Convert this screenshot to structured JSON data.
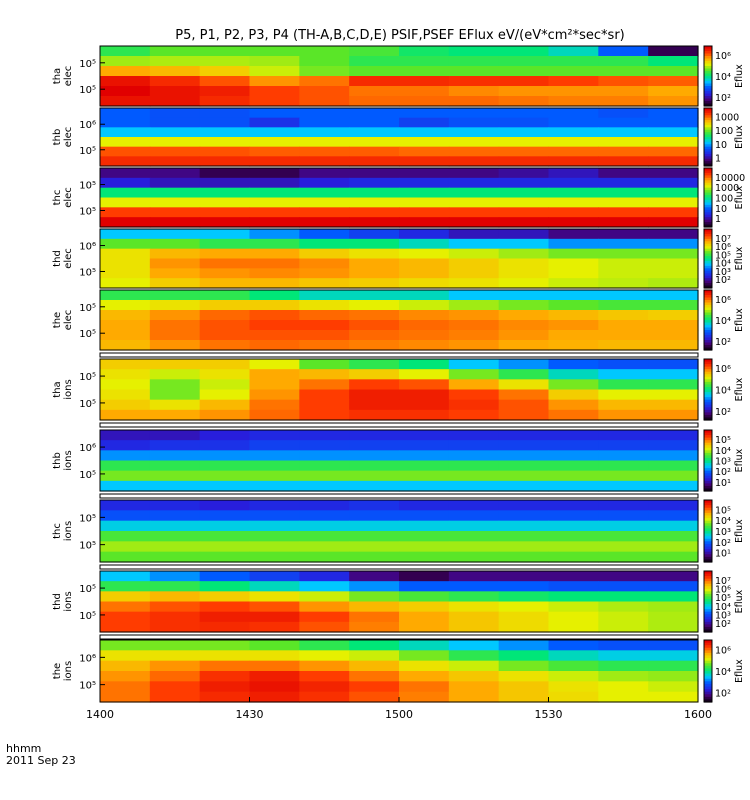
{
  "chart_data": {
    "type": "heatmap",
    "title": "P5, P1, P2, P3, P4 (TH-A,B,C,D,E) PSIF,PSEF EFlux eV/(eV*cm²*sec*sr)",
    "x_ticks": [
      "1400",
      "1430",
      "1500",
      "1530",
      "1600"
    ],
    "x_start_label": "hhmm",
    "date_label": "2011 Sep 23",
    "colorbar_label": "Eflux",
    "panels": [
      {
        "name": "tha",
        "species": "elec",
        "y_ticks": [
          "10⁵",
          "10⁵"
        ],
        "cbar_ticks": [
          "10⁶",
          "10⁴",
          "10²"
        ],
        "cbar_label": "Eflux",
        "rows": [
          [
            0.55,
            0.6,
            0.6,
            0.6,
            0.6,
            0.58,
            0.52,
            0.5,
            0.5,
            0.45,
            0.3,
            0.05
          ],
          [
            0.65,
            0.66,
            0.66,
            0.65,
            0.6,
            0.55,
            0.55,
            0.55,
            0.55,
            0.55,
            0.55,
            0.5
          ],
          [
            0.8,
            0.78,
            0.75,
            0.68,
            0.62,
            0.6,
            0.6,
            0.6,
            0.6,
            0.6,
            0.6,
            0.6
          ],
          [
            0.97,
            0.93,
            0.88,
            0.82,
            0.85,
            0.93,
            0.93,
            0.92,
            0.92,
            0.9,
            0.88,
            0.87
          ],
          [
            1.0,
            0.97,
            0.95,
            0.9,
            0.88,
            0.85,
            0.85,
            0.83,
            0.82,
            0.82,
            0.82,
            0.8
          ],
          [
            0.97,
            0.97,
            0.93,
            0.9,
            0.88,
            0.86,
            0.86,
            0.86,
            0.85,
            0.84,
            0.84,
            0.82
          ]
        ]
      },
      {
        "name": "thb",
        "species": "elec",
        "y_ticks": [
          "10⁶",
          "10⁵"
        ],
        "cbar_ticks": [
          "1000",
          "100",
          "10",
          "1"
        ],
        "cbar_label": "Eflux",
        "rows": [
          [
            0.3,
            0.28,
            0.28,
            0.3,
            0.3,
            0.3,
            0.3,
            0.3,
            0.3,
            0.3,
            0.28,
            0.3
          ],
          [
            0.3,
            0.28,
            0.28,
            0.22,
            0.3,
            0.3,
            0.25,
            0.28,
            0.28,
            0.3,
            0.3,
            0.3
          ],
          [
            0.4,
            0.4,
            0.4,
            0.4,
            0.4,
            0.4,
            0.4,
            0.4,
            0.4,
            0.4,
            0.4,
            0.4
          ],
          [
            0.7,
            0.7,
            0.7,
            0.7,
            0.7,
            0.7,
            0.7,
            0.7,
            0.7,
            0.7,
            0.7,
            0.7
          ],
          [
            0.88,
            0.88,
            0.88,
            0.87,
            0.87,
            0.87,
            0.86,
            0.86,
            0.86,
            0.86,
            0.86,
            0.86
          ],
          [
            0.93,
            0.93,
            0.93,
            0.93,
            0.93,
            0.93,
            0.93,
            0.93,
            0.93,
            0.93,
            0.93,
            0.93
          ]
        ]
      },
      {
        "name": "thc",
        "species": "elec",
        "y_ticks": [
          "10⁵",
          "10⁵"
        ],
        "cbar_ticks": [
          "10000",
          "1000",
          "100",
          "10",
          "1"
        ],
        "cbar_label": "Eflux",
        "rows": [
          [
            0.1,
            0.1,
            0.05,
            0.05,
            0.1,
            0.1,
            0.1,
            0.1,
            0.12,
            0.15,
            0.1,
            0.1
          ],
          [
            0.18,
            0.15,
            0.15,
            0.15,
            0.18,
            0.2,
            0.2,
            0.2,
            0.2,
            0.2,
            0.2,
            0.2
          ],
          [
            0.5,
            0.5,
            0.5,
            0.5,
            0.5,
            0.5,
            0.5,
            0.5,
            0.5,
            0.5,
            0.5,
            0.5
          ],
          [
            0.7,
            0.7,
            0.7,
            0.7,
            0.7,
            0.7,
            0.7,
            0.7,
            0.7,
            0.7,
            0.7,
            0.7
          ],
          [
            0.9,
            0.9,
            0.9,
            0.9,
            0.9,
            0.9,
            0.9,
            0.9,
            0.9,
            0.9,
            0.9,
            0.9
          ],
          [
            1.0,
            1.0,
            1.0,
            1.0,
            1.0,
            1.0,
            1.0,
            1.0,
            1.0,
            1.0,
            1.0,
            1.0
          ]
        ]
      },
      {
        "name": "thd",
        "species": "elec",
        "y_ticks": [
          "10⁶",
          "10⁵"
        ],
        "cbar_ticks": [
          "10⁷",
          "10⁶",
          "10⁵",
          "10⁴",
          "10³",
          "10²"
        ],
        "cbar_label": "Eflux",
        "rows": [
          [
            0.4,
            0.4,
            0.4,
            0.35,
            0.3,
            0.25,
            0.2,
            0.15,
            0.15,
            0.1,
            0.1,
            0.1
          ],
          [
            0.6,
            0.6,
            0.55,
            0.55,
            0.5,
            0.5,
            0.45,
            0.4,
            0.4,
            0.35,
            0.35,
            0.35
          ],
          [
            0.72,
            0.78,
            0.8,
            0.8,
            0.75,
            0.72,
            0.7,
            0.68,
            0.65,
            0.62,
            0.62,
            0.62
          ],
          [
            0.72,
            0.82,
            0.85,
            0.85,
            0.83,
            0.8,
            0.78,
            0.75,
            0.72,
            0.7,
            0.68,
            0.68
          ],
          [
            0.72,
            0.8,
            0.82,
            0.83,
            0.82,
            0.8,
            0.78,
            0.75,
            0.72,
            0.7,
            0.68,
            0.68
          ],
          [
            0.7,
            0.75,
            0.78,
            0.78,
            0.76,
            0.75,
            0.73,
            0.72,
            0.7,
            0.68,
            0.67,
            0.66
          ]
        ]
      },
      {
        "name": "the",
        "species": "elec",
        "y_ticks": [
          "10⁵",
          "10⁵"
        ],
        "cbar_ticks": [
          "10⁶",
          "10⁴",
          "10²"
        ],
        "cbar_label": "Eflux",
        "rows": [
          [
            0.55,
            0.55,
            0.55,
            0.5,
            0.45,
            0.45,
            0.45,
            0.4,
            0.4,
            0.4,
            0.4,
            0.4
          ],
          [
            0.7,
            0.72,
            0.75,
            0.75,
            0.72,
            0.7,
            0.68,
            0.65,
            0.62,
            0.6,
            0.58,
            0.58
          ],
          [
            0.78,
            0.82,
            0.86,
            0.88,
            0.86,
            0.85,
            0.83,
            0.82,
            0.8,
            0.78,
            0.76,
            0.75
          ],
          [
            0.8,
            0.85,
            0.88,
            0.9,
            0.9,
            0.88,
            0.86,
            0.85,
            0.83,
            0.82,
            0.8,
            0.8
          ],
          [
            0.8,
            0.85,
            0.88,
            0.88,
            0.88,
            0.86,
            0.85,
            0.84,
            0.82,
            0.8,
            0.8,
            0.8
          ],
          [
            0.78,
            0.82,
            0.85,
            0.86,
            0.85,
            0.84,
            0.83,
            0.82,
            0.8,
            0.79,
            0.78,
            0.78
          ]
        ]
      },
      {
        "name": "tha",
        "species": "ions",
        "y_ticks": [
          "10⁵",
          "10⁵"
        ],
        "cbar_ticks": [
          "10⁶",
          "10⁴",
          "10²"
        ],
        "cbar_label": "Eflux",
        "rows": [
          [
            0.75,
            0.75,
            0.75,
            0.7,
            0.6,
            0.55,
            0.5,
            0.4,
            0.35,
            0.3,
            0.28,
            0.28
          ],
          [
            0.72,
            0.68,
            0.72,
            0.8,
            0.78,
            0.75,
            0.7,
            0.62,
            0.55,
            0.45,
            0.4,
            0.4
          ],
          [
            0.7,
            0.62,
            0.68,
            0.8,
            0.85,
            0.9,
            0.88,
            0.8,
            0.72,
            0.62,
            0.55,
            0.55
          ],
          [
            0.72,
            0.62,
            0.7,
            0.82,
            0.9,
            0.95,
            0.95,
            0.9,
            0.85,
            0.75,
            0.7,
            0.7
          ],
          [
            0.75,
            0.72,
            0.78,
            0.85,
            0.9,
            0.95,
            0.95,
            0.92,
            0.88,
            0.82,
            0.78,
            0.78
          ],
          [
            0.8,
            0.8,
            0.82,
            0.86,
            0.9,
            0.92,
            0.92,
            0.9,
            0.88,
            0.85,
            0.82,
            0.82
          ]
        ]
      },
      {
        "name": "thb",
        "species": "ions",
        "y_ticks": [
          "10⁶",
          "10⁵"
        ],
        "cbar_ticks": [
          "10⁵",
          "10⁴",
          "10³",
          "10²",
          "10¹"
        ],
        "cbar_label": "Eflux",
        "rows": [
          [
            0.15,
            0.15,
            0.18,
            0.2,
            0.2,
            0.2,
            0.2,
            0.2,
            0.2,
            0.2,
            0.2,
            0.2
          ],
          [
            0.2,
            0.22,
            0.22,
            0.25,
            0.25,
            0.25,
            0.25,
            0.25,
            0.25,
            0.25,
            0.25,
            0.25
          ],
          [
            0.35,
            0.35,
            0.35,
            0.35,
            0.35,
            0.35,
            0.35,
            0.35,
            0.35,
            0.35,
            0.35,
            0.35
          ],
          [
            0.55,
            0.55,
            0.55,
            0.55,
            0.55,
            0.55,
            0.55,
            0.55,
            0.55,
            0.55,
            0.55,
            0.55
          ],
          [
            0.62,
            0.62,
            0.62,
            0.62,
            0.62,
            0.62,
            0.62,
            0.62,
            0.62,
            0.62,
            0.62,
            0.62
          ],
          [
            0.4,
            0.4,
            0.4,
            0.4,
            0.4,
            0.4,
            0.4,
            0.4,
            0.4,
            0.4,
            0.4,
            0.4
          ]
        ]
      },
      {
        "name": "thc",
        "species": "ions",
        "y_ticks": [
          "10⁵",
          "10⁵"
        ],
        "cbar_ticks": [
          "10⁵",
          "10⁴",
          "10³",
          "10²",
          "10¹"
        ],
        "cbar_label": "Eflux",
        "rows": [
          [
            0.2,
            0.2,
            0.18,
            0.2,
            0.2,
            0.22,
            0.2,
            0.2,
            0.2,
            0.2,
            0.2,
            0.2
          ],
          [
            0.28,
            0.28,
            0.28,
            0.28,
            0.28,
            0.28,
            0.28,
            0.28,
            0.28,
            0.28,
            0.28,
            0.28
          ],
          [
            0.42,
            0.42,
            0.42,
            0.42,
            0.42,
            0.42,
            0.42,
            0.42,
            0.42,
            0.42,
            0.42,
            0.42
          ],
          [
            0.58,
            0.58,
            0.58,
            0.58,
            0.58,
            0.58,
            0.58,
            0.58,
            0.58,
            0.58,
            0.58,
            0.58
          ],
          [
            0.65,
            0.65,
            0.65,
            0.65,
            0.65,
            0.65,
            0.65,
            0.65,
            0.65,
            0.65,
            0.65,
            0.65
          ],
          [
            0.6,
            0.6,
            0.6,
            0.6,
            0.6,
            0.6,
            0.6,
            0.6,
            0.6,
            0.6,
            0.6,
            0.6
          ]
        ]
      },
      {
        "name": "thd",
        "species": "ions",
        "y_ticks": [
          "10⁵",
          "10⁵"
        ],
        "cbar_ticks": [
          "10⁷",
          "10⁶",
          "10⁵",
          "10⁴",
          "10³",
          "10²"
        ],
        "cbar_label": "Eflux",
        "rows": [
          [
            0.4,
            0.35,
            0.3,
            0.25,
            0.2,
            0.1,
            0.05,
            0.1,
            0.1,
            0.1,
            0.1,
            0.1
          ],
          [
            0.55,
            0.55,
            0.5,
            0.45,
            0.4,
            0.35,
            0.3,
            0.3,
            0.3,
            0.28,
            0.28,
            0.28
          ],
          [
            0.75,
            0.78,
            0.75,
            0.72,
            0.68,
            0.62,
            0.58,
            0.55,
            0.52,
            0.5,
            0.5,
            0.5
          ],
          [
            0.85,
            0.88,
            0.9,
            0.88,
            0.82,
            0.78,
            0.75,
            0.72,
            0.7,
            0.68,
            0.66,
            0.65
          ],
          [
            0.9,
            0.92,
            0.95,
            0.95,
            0.9,
            0.85,
            0.8,
            0.76,
            0.73,
            0.7,
            0.68,
            0.66
          ],
          [
            0.9,
            0.92,
            0.93,
            0.92,
            0.88,
            0.84,
            0.8,
            0.76,
            0.73,
            0.7,
            0.68,
            0.66
          ]
        ]
      },
      {
        "name": "the",
        "species": "ions",
        "y_ticks": [
          "10⁶",
          "10⁵"
        ],
        "cbar_ticks": [
          "10⁶",
          "10⁴",
          "10²"
        ],
        "cbar_label": "Eflux",
        "rows": [
          [
            0.62,
            0.62,
            0.62,
            0.6,
            0.55,
            0.5,
            0.45,
            0.4,
            0.35,
            0.3,
            0.28,
            0.28
          ],
          [
            0.72,
            0.72,
            0.72,
            0.72,
            0.7,
            0.68,
            0.62,
            0.55,
            0.5,
            0.45,
            0.42,
            0.42
          ],
          [
            0.78,
            0.82,
            0.85,
            0.85,
            0.82,
            0.78,
            0.72,
            0.68,
            0.62,
            0.58,
            0.55,
            0.55
          ],
          [
            0.82,
            0.86,
            0.92,
            0.95,
            0.9,
            0.85,
            0.8,
            0.76,
            0.72,
            0.68,
            0.65,
            0.64
          ],
          [
            0.85,
            0.9,
            0.95,
            0.97,
            0.94,
            0.9,
            0.85,
            0.8,
            0.76,
            0.72,
            0.7,
            0.68
          ],
          [
            0.85,
            0.9,
            0.93,
            0.95,
            0.92,
            0.88,
            0.84,
            0.8,
            0.76,
            0.73,
            0.7,
            0.7
          ]
        ]
      }
    ]
  }
}
